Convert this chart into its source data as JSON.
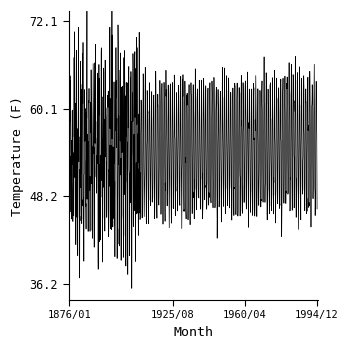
{
  "title": "",
  "xlabel": "Month",
  "ylabel": "Temperature (F)",
  "start_year": 1876,
  "start_month": 1,
  "end_year": 1994,
  "end_month": 12,
  "ylim": [
    34.0,
    73.5
  ],
  "yticks": [
    36.2,
    48.2,
    60.1,
    72.1
  ],
  "xtick_labels": [
    "1876/01",
    "1925/08",
    "1960/04",
    "1994/12"
  ],
  "line_color": "#000000",
  "line_width": 0.5,
  "background_color": "#ffffff",
  "mean_temp": 54.15,
  "amplitude": 8.5,
  "noise_std": 1.5,
  "trend": 0.0008,
  "figsize": [
    3.5,
    3.5
  ],
  "dpi": 100
}
